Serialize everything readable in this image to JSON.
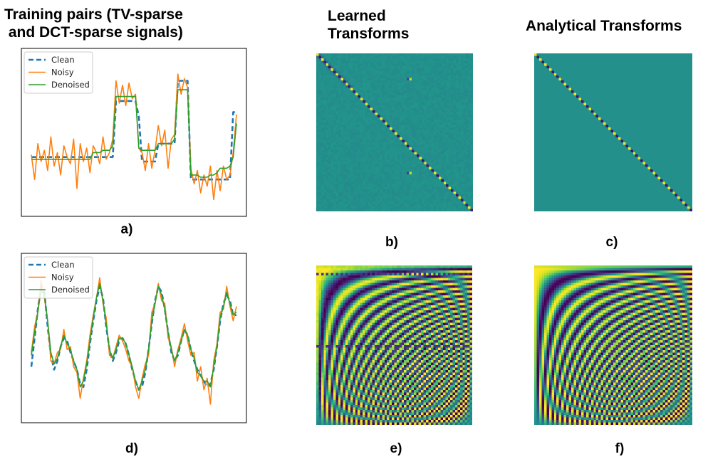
{
  "titles": {
    "col1": "Training pairs (TV-sparse\n and DCT-sparse signals)",
    "col2": "Learned\nTransforms",
    "col3": "Analytical Transforms"
  },
  "panel_labels": {
    "a": "a)",
    "b": "b)",
    "c": "c)",
    "d": "d)",
    "e": "e)",
    "f": "f)"
  },
  "colors": {
    "clean": "#1f77b4",
    "noisy": "#ff7f0e",
    "denoised": "#2ca02c"
  },
  "chart_data": [
    {
      "type": "line",
      "panel": "a",
      "legend": [
        "Clean",
        "Noisy",
        "Denoised"
      ],
      "legend_position": "top-left",
      "xlim": [
        0,
        63
      ],
      "ylim": [
        -2.2,
        4.4
      ],
      "series": [
        {
          "name": "Clean",
          "style": "dashed",
          "values": [
            0,
            0,
            0,
            0,
            0,
            0,
            0,
            0,
            0,
            0,
            0,
            0,
            0,
            0,
            0,
            0,
            0,
            0,
            0,
            0,
            0,
            0,
            0,
            0,
            0,
            0,
            2.5,
            2.5,
            2.5,
            2.5,
            2.5,
            2.5,
            2.5,
            1.8,
            -0.2,
            -0.2,
            -0.2,
            -0.2,
            -0.2,
            0.6,
            0.6,
            0.6,
            0.6,
            0.6,
            0.6,
            3.4,
            3.4,
            3.4,
            3.4,
            -1.0,
            -1.0,
            -1.0,
            -1.0,
            -1.0,
            -1.0,
            -1.0,
            -1.0,
            -1.0,
            -1.0,
            -1.0,
            -1.0,
            -1.0,
            2.0,
            2.0
          ]
        },
        {
          "name": "Noisy",
          "style": "solid",
          "values": [
            0.1,
            -1.0,
            0.6,
            -0.2,
            0.3,
            -0.6,
            0.9,
            -0.4,
            0.2,
            -0.8,
            0.5,
            0.0,
            -0.3,
            0.8,
            -1.4,
            0.6,
            -0.2,
            0.4,
            -0.7,
            0.5,
            0.2,
            -0.3,
            0.9,
            -0.1,
            0.2,
            0.8,
            3.4,
            2.4,
            3.2,
            2.3,
            3.3,
            2.6,
            2.8,
            0.4,
            0.2,
            -0.6,
            0.6,
            -0.5,
            0.3,
            1.4,
            0.5,
            1.2,
            -0.5,
            0.8,
            1.0,
            3.7,
            2.8,
            3.5,
            3.1,
            -0.5,
            -1.2,
            -0.6,
            -1.6,
            -0.8,
            -1.3,
            -0.4,
            -1.9,
            -0.6,
            -1.5,
            -0.4,
            -1.0,
            -0.8,
            0.2,
            1.9
          ]
        },
        {
          "name": "Denoised",
          "style": "solid",
          "values": [
            -0.1,
            -0.1,
            -0.1,
            -0.1,
            -0.1,
            -0.1,
            -0.1,
            -0.1,
            -0.1,
            -0.1,
            -0.1,
            -0.1,
            -0.1,
            -0.1,
            -0.1,
            -0.1,
            -0.1,
            -0.1,
            -0.1,
            0.2,
            0.2,
            0.2,
            0.3,
            0.3,
            0.3,
            0.5,
            2.7,
            2.7,
            2.7,
            2.7,
            2.7,
            2.7,
            2.7,
            0.4,
            0.3,
            0.3,
            0.3,
            0.3,
            0.3,
            0.6,
            0.6,
            0.6,
            0.6,
            0.6,
            0.8,
            3.0,
            3.0,
            3.0,
            3.0,
            -0.8,
            -0.8,
            -0.8,
            -0.9,
            -0.9,
            -0.9,
            -0.8,
            -0.8,
            -0.7,
            -0.5,
            -0.5,
            -0.5,
            -0.4,
            0.0,
            1.5
          ]
        }
      ]
    },
    {
      "type": "line",
      "panel": "d",
      "legend": [
        "Clean",
        "Noisy",
        "Denoised"
      ],
      "legend_position": "top-left",
      "xlim": [
        0,
        63
      ],
      "ylim": [
        -2.4,
        2.8
      ],
      "series": [
        {
          "name": "Clean",
          "style": "dashed",
          "values": [
            -0.8,
            0.2,
            1.2,
            2.0,
            1.8,
            0.6,
            -0.4,
            -0.9,
            -0.6,
            -0.1,
            0.2,
            0.1,
            -0.3,
            -0.6,
            -0.9,
            -1.4,
            -1.5,
            -0.9,
            0.0,
            0.8,
            1.5,
            2.0,
            1.6,
            0.6,
            -0.2,
            -0.6,
            -0.3,
            0.1,
            0.2,
            0.0,
            -0.4,
            -0.9,
            -1.3,
            -1.6,
            -1.5,
            -1.0,
            -0.2,
            0.7,
            1.5,
            2.0,
            1.8,
            1.2,
            0.4,
            -0.3,
            -0.6,
            -0.4,
            0.1,
            0.5,
            0.3,
            -0.2,
            -0.6,
            -0.9,
            -1.1,
            -1.3,
            -1.5,
            -1.4,
            -0.9,
            -0.1,
            0.8,
            1.4,
            1.7,
            1.5,
            1.0,
            1.0
          ]
        },
        {
          "name": "Noisy",
          "style": "solid",
          "values": [
            -0.3,
            0.6,
            1.1,
            2.2,
            1.6,
            0.8,
            -0.6,
            -0.7,
            -0.3,
            -0.2,
            0.5,
            -0.2,
            -0.1,
            -0.8,
            -1.0,
            -1.9,
            -1.2,
            -0.6,
            0.3,
            1.0,
            1.6,
            2.3,
            1.4,
            0.9,
            -0.4,
            -0.5,
            -0.1,
            0.3,
            0.1,
            -0.2,
            -0.6,
            -0.8,
            -1.5,
            -1.9,
            -1.2,
            -0.7,
            -0.4,
            1.1,
            1.4,
            2.1,
            1.5,
            1.4,
            0.2,
            -0.1,
            -0.8,
            -0.2,
            0.2,
            0.7,
            0.1,
            -0.4,
            -0.3,
            -1.3,
            -0.8,
            -1.6,
            -1.2,
            -2.1,
            -0.6,
            0.0,
            1.1,
            1.2,
            2.0,
            1.3,
            0.8,
            1.3
          ]
        },
        {
          "name": "Denoised",
          "style": "solid",
          "values": [
            -0.4,
            0.4,
            1.1,
            1.9,
            1.7,
            0.8,
            -0.3,
            -0.7,
            -0.5,
            -0.1,
            0.3,
            0.0,
            -0.2,
            -0.6,
            -0.9,
            -1.5,
            -1.3,
            -0.7,
            0.1,
            0.9,
            1.6,
            2.1,
            1.5,
            0.7,
            -0.2,
            -0.5,
            -0.2,
            0.2,
            0.2,
            0.0,
            -0.4,
            -0.8,
            -1.3,
            -1.6,
            -1.3,
            -0.9,
            -0.2,
            0.8,
            1.4,
            2.0,
            1.7,
            1.2,
            0.4,
            -0.2,
            -0.6,
            -0.3,
            0.1,
            0.5,
            0.3,
            -0.2,
            -0.5,
            -1.0,
            -1.1,
            -1.3,
            -1.3,
            -1.5,
            -0.8,
            -0.1,
            0.9,
            1.3,
            1.8,
            1.4,
            1.0,
            1.1
          ]
        }
      ]
    },
    {
      "type": "heatmap",
      "panel": "b",
      "kind": "learned",
      "basis": "identity",
      "size": 64
    },
    {
      "type": "heatmap",
      "panel": "c",
      "kind": "analytical",
      "basis": "identity",
      "size": 64
    },
    {
      "type": "heatmap",
      "panel": "e",
      "kind": "learned",
      "basis": "dct",
      "size": 64
    },
    {
      "type": "heatmap",
      "panel": "f",
      "kind": "analytical",
      "basis": "dct",
      "size": 64
    }
  ]
}
